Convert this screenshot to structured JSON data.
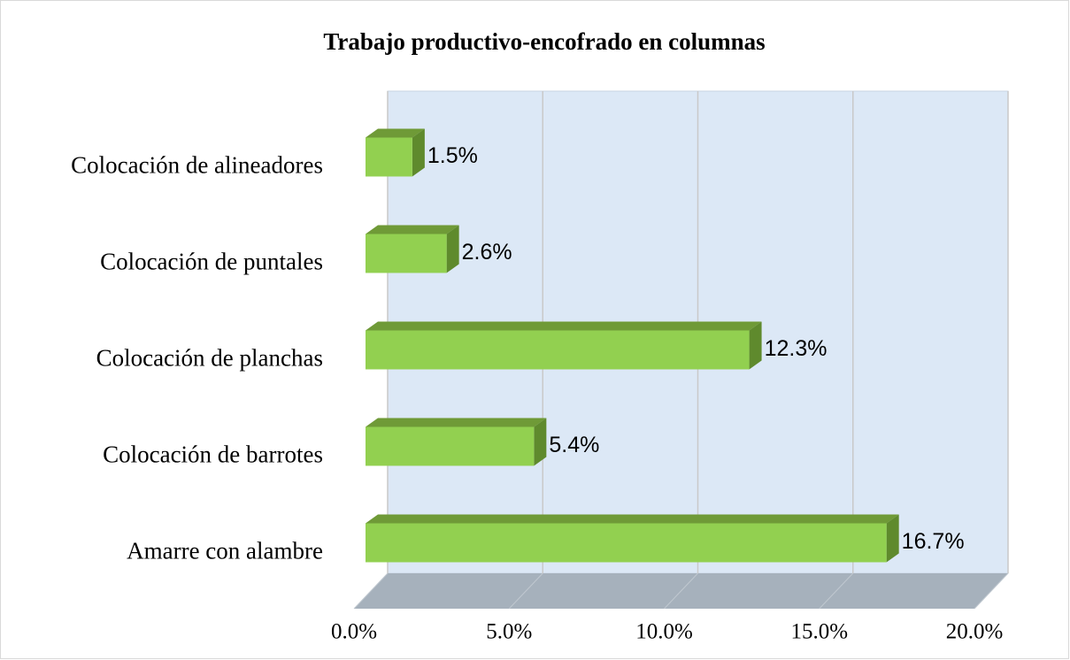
{
  "chart_data": {
    "type": "bar",
    "orientation": "horizontal",
    "three_d": true,
    "title": "Trabajo productivo-encofrado en columnas",
    "categories": [
      "Colocación de alineadores",
      "Colocación de puntales",
      "Colocación de planchas",
      "Colocación de barrotes",
      "Amarre con alambre"
    ],
    "values": [
      1.5,
      2.6,
      12.3,
      5.4,
      16.7
    ],
    "value_labels": [
      "1.5%",
      "2.6%",
      "12.3%",
      "5.4%",
      "16.7%"
    ],
    "color": "#92d050",
    "xlim": [
      0,
      20
    ],
    "xticks": [
      {
        "value": 0,
        "label": "0.0%"
      },
      {
        "value": 5,
        "label": "5.0%"
      },
      {
        "value": 10,
        "label": "10.0%"
      },
      {
        "value": 15,
        "label": "15.0%"
      },
      {
        "value": 20,
        "label": "20.0%"
      }
    ],
    "grid": true
  }
}
